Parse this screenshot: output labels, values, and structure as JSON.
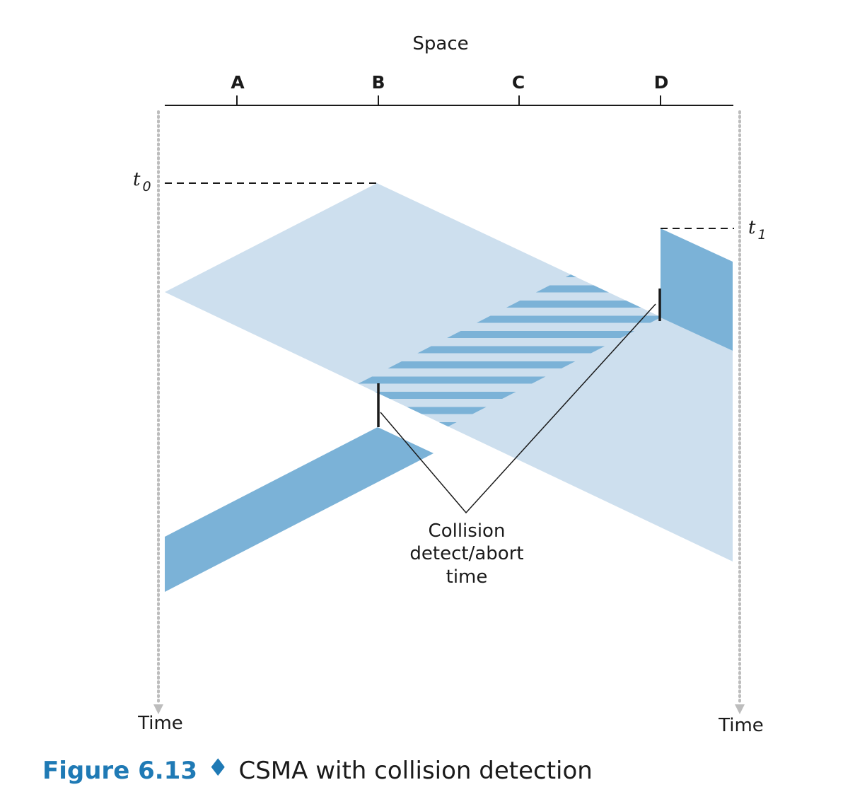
{
  "axis": {
    "space_label": "Space",
    "nodes": [
      "A",
      "B",
      "C",
      "D"
    ],
    "time_label_left": "Time",
    "time_label_right": "Time"
  },
  "markers": {
    "t0": {
      "base": "t",
      "sub": "0"
    },
    "t1": {
      "base": "t",
      "sub": "1"
    }
  },
  "annotation": {
    "line1": "Collision",
    "line2": "detect/abort",
    "line3": "time"
  },
  "caption": {
    "number": "Figure 6.13",
    "separator": "♦",
    "text": "CSMA with collision detection"
  },
  "colors": {
    "light_blue": "#cddfee",
    "dark_blue": "#7bb2d7",
    "axis": "#1a1a1a",
    "dotted": "#bdbdbd",
    "caption_accent": "#1f7ab5"
  }
}
